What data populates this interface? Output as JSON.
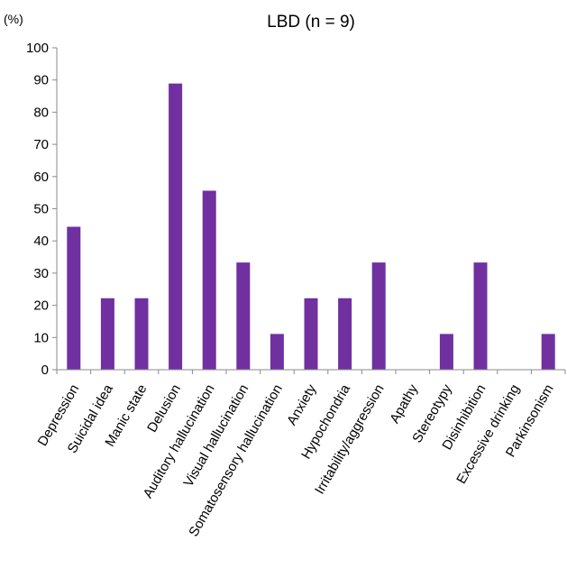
{
  "chart_data": {
    "type": "bar",
    "title": "LBD (n = 9)",
    "ylabel": "(%)",
    "xlabel": "",
    "ylim": [
      0,
      100
    ],
    "yticks": [
      0,
      10,
      20,
      30,
      40,
      50,
      60,
      70,
      80,
      90,
      100
    ],
    "grid": false,
    "bar_color": "#7030a0",
    "categories": [
      "Depression",
      "Suicidal idea",
      "Manic state",
      "Delusion",
      "Auditory hallucination",
      "Visual hallucination",
      "Somatosensory hallucination",
      "Anxiety",
      "Hypochondria",
      "Irritability/aggression",
      "Apathy",
      "Stereotypy",
      "Disinhibition",
      "Excessive drinking",
      "Parkinsonism"
    ],
    "values": [
      44.4,
      22.2,
      22.2,
      88.9,
      55.6,
      33.3,
      11.1,
      22.2,
      22.2,
      33.3,
      0,
      11.1,
      33.3,
      0,
      11.1
    ]
  }
}
